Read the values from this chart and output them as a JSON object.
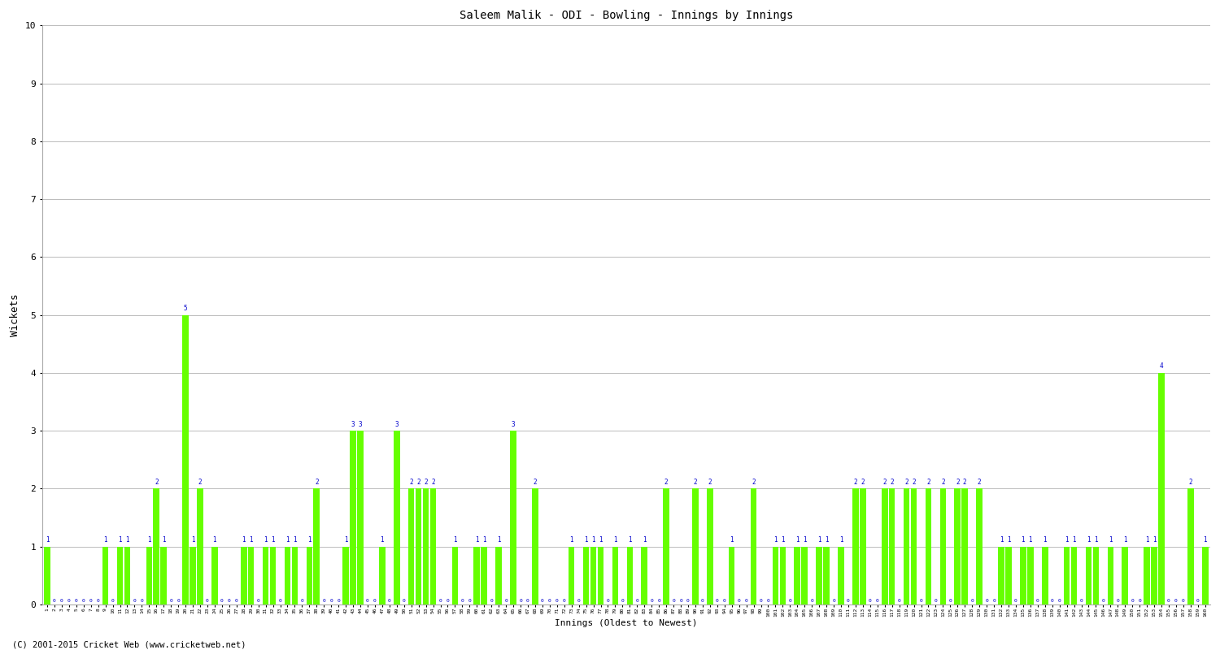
{
  "title": "Saleem Malik - ODI - Bowling - Innings by Innings",
  "xlabel": "Innings (Oldest to Newest)",
  "ylabel": "Wickets",
  "ylim": [
    0,
    10
  ],
  "yticks": [
    0,
    1,
    2,
    3,
    4,
    5,
    6,
    7,
    8,
    9,
    10
  ],
  "bar_color": "#66ff00",
  "label_color": "#0000cc",
  "background_color": "#ffffff",
  "grid_color": "#bbbbbb",
  "footer": "(C) 2001-2015 Cricket Web (www.cricketweb.net)",
  "wickets": [
    1,
    0,
    0,
    0,
    0,
    0,
    0,
    0,
    1,
    0,
    1,
    1,
    0,
    0,
    1,
    2,
    1,
    0,
    0,
    5,
    1,
    2,
    0,
    1,
    0,
    0,
    0,
    1,
    1,
    0,
    1,
    1,
    0,
    1,
    1,
    0,
    1,
    2,
    0,
    0,
    0,
    1,
    3,
    3,
    0,
    0,
    1,
    0,
    3,
    0,
    2,
    2,
    2,
    2,
    0,
    0,
    1,
    0,
    0,
    1,
    1,
    0,
    1,
    0,
    3,
    0,
    0,
    2,
    0,
    0,
    0,
    0,
    1,
    0,
    1,
    1,
    1,
    0,
    1,
    0,
    1,
    0,
    1,
    0,
    0,
    2,
    0,
    0,
    0,
    2,
    0,
    2,
    0,
    0,
    1,
    0,
    0,
    2,
    0,
    0,
    1,
    1,
    0,
    1,
    1,
    0,
    1,
    1,
    0,
    1,
    0,
    2,
    2,
    0,
    0,
    2,
    2,
    0,
    2,
    2,
    0,
    2,
    0,
    2,
    0,
    2,
    2,
    0,
    2,
    0,
    0,
    1,
    1,
    0,
    1,
    1,
    0,
    1,
    0,
    0,
    1,
    1,
    0,
    1,
    1,
    0,
    1,
    0,
    1,
    0,
    0,
    1,
    1,
    4,
    0,
    0,
    0,
    2,
    0,
    1
  ]
}
